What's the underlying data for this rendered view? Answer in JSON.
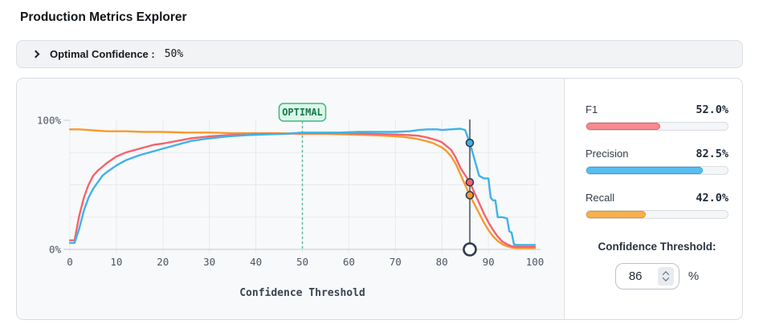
{
  "page": {
    "title": "Production Metrics Explorer"
  },
  "accordion": {
    "label": "Optimal Confidence :",
    "value": "50%",
    "icons": {
      "expander": "chevron-right"
    }
  },
  "chart_data": {
    "type": "line",
    "xlabel": "Confidence Threshold",
    "xlim": [
      0,
      100
    ],
    "ylim": [
      0,
      100
    ],
    "grid": true,
    "x_ticks": [
      0,
      10,
      20,
      30,
      40,
      50,
      60,
      70,
      80,
      90,
      100
    ],
    "y_ticks": [
      {
        "pct": 0,
        "label": "0%"
      },
      {
        "pct": 100,
        "label": "100%"
      }
    ],
    "h_gridlines_pct": [
      25,
      50,
      75
    ],
    "optimal": {
      "x": 50,
      "label": "OPTIMAL"
    },
    "threshold": {
      "x": 86,
      "handle_pct": 0,
      "markers": [
        {
          "series": "Precision",
          "pct": 82.5
        },
        {
          "series": "F1",
          "pct": 52
        },
        {
          "series": "Recall",
          "pct": 42
        }
      ]
    },
    "colors": {
      "grid": "#e7eaee",
      "axis": "#ccd3da",
      "optimal_line": "#5abf97",
      "badge_bg": "#dcf7e9",
      "badge_border": "#3db882",
      "badge_text": "#147a4f",
      "threshold_line": "#6b7683",
      "marker_ring": "#2e3c4d"
    },
    "series": [
      {
        "name": "Recall",
        "color": "#f79a2f",
        "points": [
          [
            0,
            93
          ],
          [
            2,
            93
          ],
          [
            4,
            92.5
          ],
          [
            6,
            92
          ],
          [
            8,
            91.5
          ],
          [
            12,
            91.5
          ],
          [
            16,
            91
          ],
          [
            20,
            91
          ],
          [
            25,
            90.5
          ],
          [
            30,
            90.5
          ],
          [
            35,
            90
          ],
          [
            40,
            90
          ],
          [
            45,
            90
          ],
          [
            50,
            89.5
          ],
          [
            55,
            89.5
          ],
          [
            60,
            89
          ],
          [
            65,
            88.5
          ],
          [
            68,
            88
          ],
          [
            70,
            87.5
          ],
          [
            72,
            87
          ],
          [
            74,
            86
          ],
          [
            76,
            84.5
          ],
          [
            78,
            82.5
          ],
          [
            80,
            79
          ],
          [
            81,
            76
          ],
          [
            82,
            72
          ],
          [
            83,
            66
          ],
          [
            84,
            58
          ],
          [
            85,
            50
          ],
          [
            86,
            42
          ],
          [
            87,
            35
          ],
          [
            88,
            28
          ],
          [
            89,
            21
          ],
          [
            90,
            15
          ],
          [
            91,
            10
          ],
          [
            92,
            6.5
          ],
          [
            93,
            4
          ],
          [
            94,
            2.5
          ],
          [
            95,
            1.5
          ],
          [
            96,
            1
          ],
          [
            100,
            1
          ]
        ]
      },
      {
        "name": "F1",
        "color": "#f4646c",
        "points": [
          [
            0,
            7
          ],
          [
            1,
            7
          ],
          [
            2,
            26
          ],
          [
            3,
            40
          ],
          [
            4,
            50
          ],
          [
            5,
            57
          ],
          [
            6,
            61
          ],
          [
            7,
            64
          ],
          [
            8,
            67
          ],
          [
            10,
            72
          ],
          [
            12,
            75
          ],
          [
            15,
            78
          ],
          [
            18,
            81
          ],
          [
            20,
            82
          ],
          [
            23,
            84
          ],
          [
            26,
            86
          ],
          [
            30,
            87.5
          ],
          [
            34,
            88.5
          ],
          [
            38,
            89
          ],
          [
            42,
            89.5
          ],
          [
            46,
            89.5
          ],
          [
            50,
            90
          ],
          [
            55,
            90
          ],
          [
            60,
            90
          ],
          [
            65,
            89.5
          ],
          [
            70,
            89
          ],
          [
            73,
            88.5
          ],
          [
            75,
            88
          ],
          [
            77,
            86.5
          ],
          [
            79,
            84.5
          ],
          [
            80,
            83
          ],
          [
            81,
            80
          ],
          [
            82,
            77
          ],
          [
            83,
            71
          ],
          [
            84,
            63
          ],
          [
            85,
            57.5
          ],
          [
            86,
            52
          ],
          [
            87,
            44
          ],
          [
            88,
            36
          ],
          [
            89,
            28
          ],
          [
            90,
            21
          ],
          [
            91,
            15
          ],
          [
            92,
            10
          ],
          [
            93,
            6
          ],
          [
            94,
            4
          ],
          [
            95,
            2.5
          ],
          [
            96,
            2
          ],
          [
            100,
            2
          ]
        ]
      },
      {
        "name": "Precision",
        "color": "#3fb2ea",
        "points": [
          [
            0,
            5
          ],
          [
            1,
            5
          ],
          [
            2,
            16
          ],
          [
            3,
            30
          ],
          [
            4,
            40
          ],
          [
            5,
            47
          ],
          [
            6,
            52
          ],
          [
            7,
            57
          ],
          [
            8,
            60
          ],
          [
            10,
            65
          ],
          [
            12,
            69
          ],
          [
            15,
            73
          ],
          [
            18,
            76
          ],
          [
            20,
            78
          ],
          [
            23,
            81
          ],
          [
            26,
            84
          ],
          [
            30,
            86
          ],
          [
            34,
            87.5
          ],
          [
            38,
            88.5
          ],
          [
            42,
            89
          ],
          [
            46,
            89.5
          ],
          [
            50,
            90.5
          ],
          [
            54,
            90.5
          ],
          [
            58,
            90.5
          ],
          [
            62,
            91
          ],
          [
            66,
            91
          ],
          [
            70,
            91
          ],
          [
            73,
            91.5
          ],
          [
            75,
            92.5
          ],
          [
            77,
            93
          ],
          [
            79,
            93
          ],
          [
            80,
            92.5
          ],
          [
            82,
            93
          ],
          [
            84,
            93.5
          ],
          [
            85,
            92.5
          ],
          [
            86,
            82.5
          ],
          [
            87,
            70
          ],
          [
            88,
            57
          ],
          [
            89,
            55
          ],
          [
            90,
            55
          ],
          [
            90.5,
            40
          ],
          [
            91,
            38
          ],
          [
            91.5,
            38
          ],
          [
            92,
            25
          ],
          [
            93,
            25
          ],
          [
            94,
            24
          ],
          [
            94.5,
            14
          ],
          [
            95,
            13
          ],
          [
            95.5,
            4
          ],
          [
            96,
            3.5
          ],
          [
            100,
            3.5
          ]
        ]
      }
    ]
  },
  "metrics_panel": {
    "metrics": [
      {
        "label": "F1",
        "value": "52.0%",
        "pct": 52.0,
        "fill": "#f9898e",
        "stroke": "#ee5a61"
      },
      {
        "label": "Precision",
        "value": "82.5%",
        "pct": 82.5,
        "fill": "#55bff2",
        "stroke": "#29a4de"
      },
      {
        "label": "Recall",
        "value": "42.0%",
        "pct": 42.0,
        "fill": "#f8b04a",
        "stroke": "#ec9214"
      }
    ],
    "threshold": {
      "label": "Confidence Threshold:",
      "value": "86",
      "unit": "%",
      "icons": {
        "stepper": "up-down-chevrons"
      }
    }
  }
}
